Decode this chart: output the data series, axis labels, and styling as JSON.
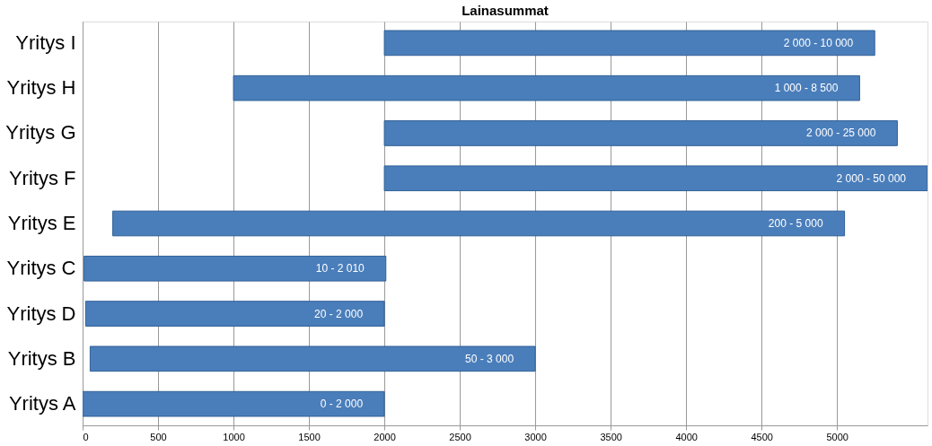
{
  "chart_data": {
    "type": "bar",
    "orientation": "horizontal",
    "title": "Lainasummat",
    "categories": [
      "Yritys I",
      "Yritys H",
      "Yritys G",
      "Yritys F",
      "Yritys E",
      "Yritys C",
      "Yritys D",
      "Yritys B",
      "Yritys A"
    ],
    "base": [
      2000,
      1000,
      2000,
      2000,
      200,
      10,
      20,
      50,
      0
    ],
    "values": [
      3250,
      4150,
      3400,
      3600,
      4850,
      2000,
      1980,
      2950,
      2000
    ],
    "annotations": [
      {
        "text": "2 000 - 10 000",
        "x": 5250,
        "y": "Yritys I"
      },
      {
        "text": "1 000 - 8 500",
        "x": 5150,
        "y": "Yritys H"
      },
      {
        "text": "2 000 - 25 000",
        "x": 5400,
        "y": "Yritys G"
      },
      {
        "text": "2 000 - 50 000",
        "x": 5600,
        "y": "Yritys F"
      },
      {
        "text": "200 - 5 000",
        "x": 5050,
        "y": "Yritys E"
      },
      {
        "text": "10 - 2 010",
        "x": 2010,
        "y": "Yritys C"
      },
      {
        "text": "20 - 2 000",
        "x": 2000,
        "y": "Yritys D"
      },
      {
        "text": "50 - 3 000",
        "x": 3000,
        "y": "Yritys B"
      },
      {
        "text": "0 - 2 000",
        "x": 2000,
        "y": "Yritys A"
      }
    ],
    "color": "#4a7ebb",
    "xlim": [
      0,
      5600
    ],
    "xticks": [
      0,
      500,
      1000,
      1500,
      2000,
      2500,
      3000,
      3500,
      4000,
      4500,
      5000
    ],
    "grid": "x"
  }
}
